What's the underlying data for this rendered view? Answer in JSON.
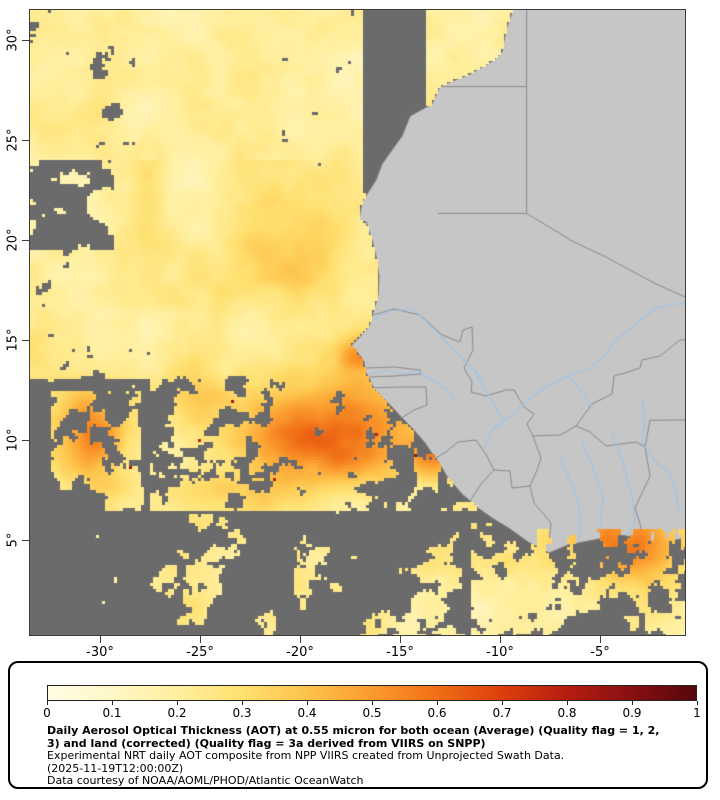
{
  "axes": {
    "lat_ticks": [
      {
        "label": "30°",
        "value": 30
      },
      {
        "label": "25°",
        "value": 25
      },
      {
        "label": "20°",
        "value": 20
      },
      {
        "label": "15°",
        "value": 15
      },
      {
        "label": "10°",
        "value": 10
      },
      {
        "label": "5°",
        "value": 5
      }
    ],
    "lon_ticks": [
      {
        "label": "-30°",
        "value": -30
      },
      {
        "label": "-25°",
        "value": -25
      },
      {
        "label": "-20°",
        "value": -20
      },
      {
        "label": "-15°",
        "value": -15
      },
      {
        "label": "-10°",
        "value": -10
      },
      {
        "label": "-5°",
        "value": -5
      }
    ]
  },
  "legend": {
    "colorbar_ticks": [
      "0",
      "0.1",
      "0.2",
      "0.3",
      "0.4",
      "0.5",
      "0.6",
      "0.7",
      "0.8",
      "0.9",
      "1"
    ],
    "colorbar_stops": [
      "#fffce4",
      "#fff7c6",
      "#ffef9e",
      "#ffe070",
      "#fdc24a",
      "#fb9b2d",
      "#f06e15",
      "#dc3f0c",
      "#b51d10",
      "#871011",
      "#56060c"
    ],
    "title": "Daily Aerosol Optical Thickness (AOT) at 0.55 micron for both ocean (Average) (Quality flag = 1, 2, 3) and land (corrected) (Quality flag = 3a derived from VIIRS on SNPP)",
    "line2": "Experimental NRT daily AOT composite from NPP VIIRS created from Unprojected Swath Data.",
    "line3": "(2025-11-19T12:00:00Z)",
    "line4": "Data courtesy of NOAA/AOML/PHOD/Atlantic OceanWatch"
  },
  "map": {
    "colors": {
      "ocean_nodata": "#6b6b6b",
      "land": "#c6c6c6",
      "border_line": "#8a8a8a",
      "river": "#9fc5e8",
      "coast_line": "#7a7a7a",
      "frame": "#3c3c3c"
    },
    "extent": {
      "lon_min": -33.5,
      "lon_max": -0.75,
      "lat_min": 0.25,
      "lat_max": 31.5
    },
    "geo": {
      "coast": [
        [
          -9.2,
          32
        ],
        [
          -9.7,
          30.5
        ],
        [
          -9.9,
          29.4
        ],
        [
          -10.3,
          29.0
        ],
        [
          -11.5,
          28.3
        ],
        [
          -13.0,
          27.7
        ],
        [
          -13.4,
          26.8
        ],
        [
          -14.5,
          26.2
        ],
        [
          -14.9,
          25.2
        ],
        [
          -15.9,
          23.8
        ],
        [
          -16.2,
          23.0
        ],
        [
          -16.9,
          21.9
        ],
        [
          -17.05,
          21.0
        ],
        [
          -16.7,
          20.9
        ],
        [
          -16.4,
          20.0
        ],
        [
          -16.2,
          19.2
        ],
        [
          -16.05,
          18.2
        ],
        [
          -16.1,
          17.2
        ],
        [
          -16.4,
          16.2
        ],
        [
          -16.55,
          15.7
        ],
        [
          -17.15,
          15.0
        ],
        [
          -17.45,
          14.72
        ],
        [
          -17.1,
          14.35
        ],
        [
          -16.8,
          13.9
        ],
        [
          -16.75,
          13.45
        ],
        [
          -16.55,
          13.1
        ],
        [
          -16.3,
          12.55
        ],
        [
          -15.85,
          12.1
        ],
        [
          -15.35,
          11.6
        ],
        [
          -14.9,
          11.1
        ],
        [
          -14.35,
          10.55
        ],
        [
          -13.75,
          9.85
        ],
        [
          -13.45,
          9.4
        ],
        [
          -13.15,
          9.0
        ],
        [
          -12.6,
          8.1
        ],
        [
          -11.9,
          7.3
        ],
        [
          -11.1,
          6.6
        ],
        [
          -10.4,
          6.1
        ],
        [
          -9.5,
          5.55
        ],
        [
          -8.6,
          4.9
        ],
        [
          -7.55,
          4.35
        ],
        [
          -6.6,
          4.75
        ],
        [
          -5.3,
          5.0
        ],
        [
          -4.0,
          5.25
        ],
        [
          -3.1,
          5.1
        ],
        [
          -2.1,
          4.85
        ],
        [
          -1.2,
          5.0
        ],
        [
          0.5,
          5.3
        ],
        [
          0.5,
          32
        ]
      ],
      "borders": [
        [
          [
            -13.17,
            27.67
          ],
          [
            -8.67,
            27.67
          ]
        ],
        [
          [
            -8.67,
            32
          ],
          [
            -8.67,
            21.33
          ]
        ],
        [
          [
            -13.1,
            21.33
          ],
          [
            -8.67,
            21.33
          ]
        ],
        [
          [
            -8.67,
            21.33
          ],
          [
            -6.3,
            19.9
          ],
          [
            -4.8,
            19.2
          ],
          [
            -2.2,
            17.8
          ],
          [
            0.5,
            16.6
          ]
        ],
        [
          [
            -16.5,
            16.2
          ],
          [
            -15.3,
            16.55
          ],
          [
            -14.0,
            16.25
          ],
          [
            -12.9,
            15.25
          ],
          [
            -12.0,
            14.9
          ],
          [
            -11.85,
            15.5
          ],
          [
            -11.4,
            15.65
          ]
        ],
        [
          [
            -11.4,
            15.65
          ],
          [
            -11.35,
            14.5
          ],
          [
            -11.8,
            13.6
          ],
          [
            -11.4,
            12.9
          ],
          [
            -11.45,
            12.4
          ]
        ],
        [
          [
            -16.7,
            12.6
          ],
          [
            -14.9,
            12.65
          ],
          [
            -13.7,
            12.65
          ]
        ],
        [
          [
            -15.0,
            11.05
          ],
          [
            -14.3,
            11.5
          ],
          [
            -13.65,
            11.75
          ],
          [
            -13.7,
            12.65
          ]
        ],
        [
          [
            -16.7,
            13.6
          ],
          [
            -15.3,
            13.65
          ],
          [
            -14.0,
            13.5
          ],
          [
            -13.95,
            13.3
          ],
          [
            -15.3,
            13.2
          ],
          [
            -16.6,
            13.15
          ]
        ],
        [
          [
            -11.45,
            12.4
          ],
          [
            -10.7,
            12.2
          ],
          [
            -9.7,
            12.5
          ],
          [
            -9.3,
            12.5
          ],
          [
            -8.8,
            11.65
          ],
          [
            -8.3,
            11.3
          ],
          [
            -8.65,
            10.8
          ],
          [
            -8.35,
            10.2
          ]
        ],
        [
          [
            -13.3,
            9.05
          ],
          [
            -12.7,
            9.4
          ],
          [
            -12.1,
            9.9
          ],
          [
            -11.2,
            10.0
          ],
          [
            -10.75,
            9.35
          ]
        ],
        [
          [
            -10.75,
            9.35
          ],
          [
            -10.3,
            8.5
          ],
          [
            -9.5,
            8.45
          ],
          [
            -9.4,
            7.6
          ],
          [
            -8.5,
            7.7
          ],
          [
            -8.3,
            6.85
          ]
        ],
        [
          [
            -11.5,
            6.95
          ],
          [
            -10.95,
            7.8
          ],
          [
            -10.3,
            8.5
          ]
        ],
        [
          [
            -8.3,
            6.85
          ],
          [
            -7.45,
            5.85
          ],
          [
            -7.55,
            4.95
          ]
        ],
        [
          [
            -8.35,
            10.2
          ],
          [
            -7.95,
            9.1
          ],
          [
            -8.15,
            8.5
          ],
          [
            -8.5,
            7.7
          ]
        ],
        [
          [
            -8.35,
            10.2
          ],
          [
            -7.0,
            10.25
          ],
          [
            -6.2,
            10.7
          ]
        ],
        [
          [
            -6.2,
            10.7
          ],
          [
            -5.4,
            11.8
          ],
          [
            -4.4,
            12.3
          ],
          [
            -4.3,
            13.2
          ],
          [
            -3.6,
            13.4
          ],
          [
            -3.0,
            13.6
          ],
          [
            -2.9,
            14.0
          ],
          [
            -2.0,
            14.2
          ],
          [
            -1.0,
            15.0
          ],
          [
            0.5,
            15.1
          ]
        ],
        [
          [
            -6.2,
            10.7
          ],
          [
            -5.5,
            10.4
          ],
          [
            -4.7,
            9.7
          ],
          [
            -3.2,
            9.9
          ],
          [
            -2.75,
            9.65
          ]
        ],
        [
          [
            -2.75,
            9.65
          ],
          [
            -2.5,
            8.2
          ],
          [
            -3.25,
            6.6
          ],
          [
            -2.95,
            5.65
          ],
          [
            -3.1,
            5.1
          ]
        ],
        [
          [
            -2.75,
            9.65
          ],
          [
            -2.5,
            10.99
          ],
          [
            -0.5,
            11.0
          ]
        ]
      ],
      "rivers": [
        [
          [
            -16.5,
            15.95
          ],
          [
            -15.5,
            16.45
          ],
          [
            -14.35,
            16.55
          ],
          [
            -13.25,
            15.5
          ],
          [
            -12.25,
            14.4
          ],
          [
            -11.3,
            13.5
          ],
          [
            -10.7,
            12.9
          ]
        ],
        [
          [
            -16.55,
            13.3
          ],
          [
            -15.6,
            13.45
          ],
          [
            -14.8,
            13.3
          ],
          [
            -14.1,
            13.45
          ],
          [
            -13.3,
            12.95
          ],
          [
            -12.6,
            12.5
          ],
          [
            -12.2,
            11.9
          ]
        ],
        [
          [
            -10.8,
            9.6
          ],
          [
            -10.4,
            10.5
          ],
          [
            -9.7,
            11.0
          ],
          [
            -8.7,
            11.9
          ],
          [
            -7.8,
            12.6
          ],
          [
            -6.6,
            13.2
          ],
          [
            -5.5,
            13.6
          ],
          [
            -4.8,
            14.2
          ],
          [
            -4.2,
            15.0
          ],
          [
            -3.2,
            15.8
          ],
          [
            -2.2,
            16.6
          ],
          [
            -0.9,
            16.85
          ],
          [
            0.5,
            16.7
          ]
        ],
        [
          [
            -6.6,
            13.2
          ],
          [
            -5.9,
            12.4
          ],
          [
            -5.35,
            11.7
          ]
        ],
        [
          [
            -2.9,
            12.0
          ],
          [
            -2.75,
            10.8
          ],
          [
            -2.9,
            9.9
          ],
          [
            -2.2,
            8.9
          ],
          [
            -1.45,
            8.3
          ],
          [
            -1.2,
            7.4
          ],
          [
            -1.05,
            6.3
          ]
        ],
        [
          [
            -4.4,
            10.3
          ],
          [
            -3.9,
            9.0
          ],
          [
            -3.4,
            7.2
          ],
          [
            -3.25,
            5.95
          ],
          [
            -3.6,
            5.25
          ]
        ],
        [
          [
            -5.9,
            9.9
          ],
          [
            -5.35,
            8.6
          ],
          [
            -4.85,
            7.2
          ],
          [
            -4.95,
            6.1
          ],
          [
            -5.05,
            5.25
          ]
        ],
        [
          [
            -7.1,
            9.3
          ],
          [
            -6.6,
            8.2
          ],
          [
            -6.1,
            7.0
          ],
          [
            -5.95,
            6.0
          ],
          [
            -6.05,
            5.1
          ]
        ],
        [
          [
            -11.3,
            13.5
          ],
          [
            -10.8,
            12.6
          ],
          [
            -10.35,
            11.9
          ],
          [
            -9.85,
            11.0
          ]
        ]
      ]
    }
  }
}
